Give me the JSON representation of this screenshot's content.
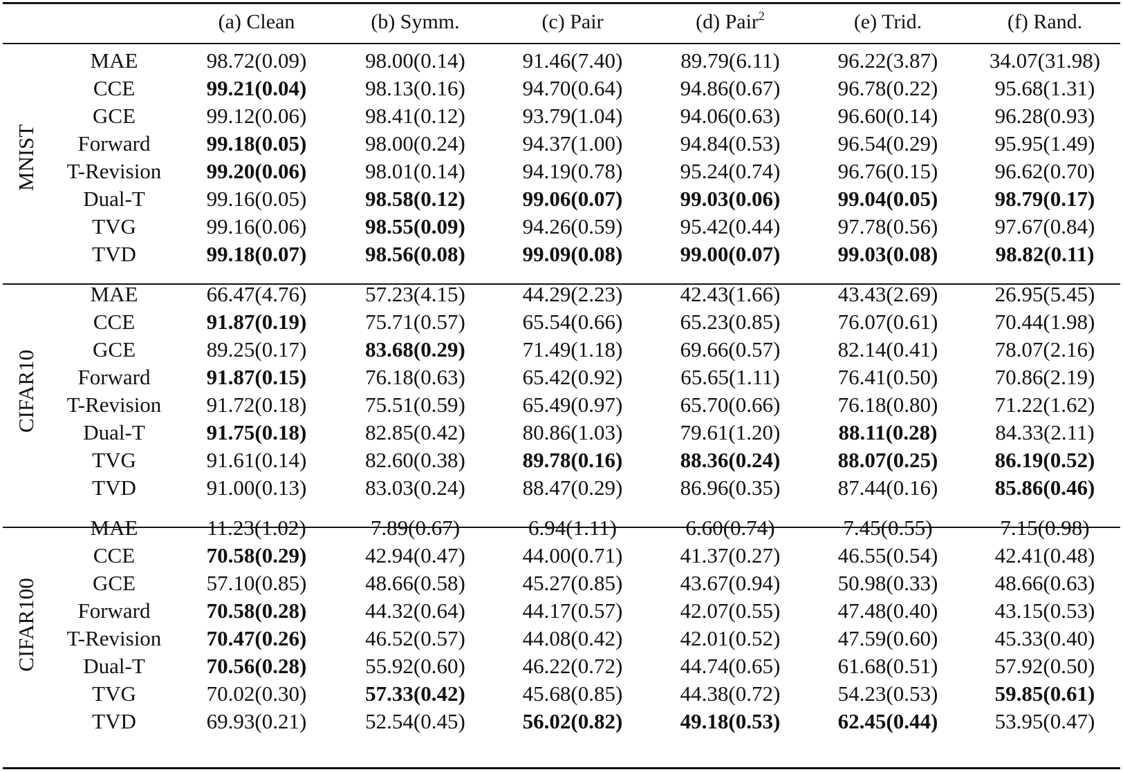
{
  "columns": [
    "(a) Clean",
    "(b) Symm.",
    "(c) Pair",
    "(d) Pair",
    "(e) Trid.",
    "(f) Rand."
  ],
  "pair2_superscript": "2",
  "sections": [
    {
      "dataset": "MNIST",
      "rows": [
        {
          "method": "MAE",
          "cells": [
            {
              "v": "98.72(0.09)",
              "b": false
            },
            {
              "v": "98.00(0.14)",
              "b": false
            },
            {
              "v": "91.46(7.40)",
              "b": false
            },
            {
              "v": "89.79(6.11)",
              "b": false
            },
            {
              "v": "96.22(3.87)",
              "b": false
            },
            {
              "v": "34.07(31.98)",
              "b": false
            }
          ]
        },
        {
          "method": "CCE",
          "cells": [
            {
              "v": "99.21(0.04)",
              "b": true
            },
            {
              "v": "98.13(0.16)",
              "b": false
            },
            {
              "v": "94.70(0.64)",
              "b": false
            },
            {
              "v": "94.86(0.67)",
              "b": false
            },
            {
              "v": "96.78(0.22)",
              "b": false
            },
            {
              "v": "95.68(1.31)",
              "b": false
            }
          ]
        },
        {
          "method": "GCE",
          "cells": [
            {
              "v": "99.12(0.06)",
              "b": false
            },
            {
              "v": "98.41(0.12)",
              "b": false
            },
            {
              "v": "93.79(1.04)",
              "b": false
            },
            {
              "v": "94.06(0.63)",
              "b": false
            },
            {
              "v": "96.60(0.14)",
              "b": false
            },
            {
              "v": "96.28(0.93)",
              "b": false
            }
          ]
        },
        {
          "method": "Forward",
          "cells": [
            {
              "v": "99.18(0.05)",
              "b": true
            },
            {
              "v": "98.00(0.24)",
              "b": false
            },
            {
              "v": "94.37(1.00)",
              "b": false
            },
            {
              "v": "94.84(0.53)",
              "b": false
            },
            {
              "v": "96.54(0.29)",
              "b": false
            },
            {
              "v": "95.95(1.49)",
              "b": false
            }
          ]
        },
        {
          "method": "T-Revision",
          "cells": [
            {
              "v": "99.20(0.06)",
              "b": true
            },
            {
              "v": "98.01(0.14)",
              "b": false
            },
            {
              "v": "94.19(0.78)",
              "b": false
            },
            {
              "v": "95.24(0.74)",
              "b": false
            },
            {
              "v": "96.76(0.15)",
              "b": false
            },
            {
              "v": "96.62(0.70)",
              "b": false
            }
          ]
        },
        {
          "method": "Dual-T",
          "cells": [
            {
              "v": "99.16(0.05)",
              "b": false
            },
            {
              "v": "98.58(0.12)",
              "b": true
            },
            {
              "v": "99.06(0.07)",
              "b": true
            },
            {
              "v": "99.03(0.06)",
              "b": true
            },
            {
              "v": "99.04(0.05)",
              "b": true
            },
            {
              "v": "98.79(0.17)",
              "b": true
            }
          ]
        },
        {
          "method": "TVG",
          "cells": [
            {
              "v": "99.16(0.06)",
              "b": false
            },
            {
              "v": "98.55(0.09)",
              "b": true
            },
            {
              "v": "94.26(0.59)",
              "b": false
            },
            {
              "v": "95.42(0.44)",
              "b": false
            },
            {
              "v": "97.78(0.56)",
              "b": false
            },
            {
              "v": "97.67(0.84)",
              "b": false
            }
          ]
        },
        {
          "method": "TVD",
          "cells": [
            {
              "v": "99.18(0.07)",
              "b": true
            },
            {
              "v": "98.56(0.08)",
              "b": true
            },
            {
              "v": "99.09(0.08)",
              "b": true
            },
            {
              "v": "99.00(0.07)",
              "b": true
            },
            {
              "v": "99.03(0.08)",
              "b": true
            },
            {
              "v": "98.82(0.11)",
              "b": true
            }
          ]
        }
      ]
    },
    {
      "dataset": "CIFAR10",
      "rows": [
        {
          "method": "MAE",
          "cells": [
            {
              "v": "66.47(4.76)",
              "b": false
            },
            {
              "v": "57.23(4.15)",
              "b": false
            },
            {
              "v": "44.29(2.23)",
              "b": false
            },
            {
              "v": "42.43(1.66)",
              "b": false
            },
            {
              "v": "43.43(2.69)",
              "b": false
            },
            {
              "v": "26.95(5.45)",
              "b": false
            }
          ]
        },
        {
          "method": "CCE",
          "cells": [
            {
              "v": "91.87(0.19)",
              "b": true
            },
            {
              "v": "75.71(0.57)",
              "b": false
            },
            {
              "v": "65.54(0.66)",
              "b": false
            },
            {
              "v": "65.23(0.85)",
              "b": false
            },
            {
              "v": "76.07(0.61)",
              "b": false
            },
            {
              "v": "70.44(1.98)",
              "b": false
            }
          ]
        },
        {
          "method": "GCE",
          "cells": [
            {
              "v": "89.25(0.17)",
              "b": false
            },
            {
              "v": "83.68(0.29)",
              "b": true
            },
            {
              "v": "71.49(1.18)",
              "b": false
            },
            {
              "v": "69.66(0.57)",
              "b": false
            },
            {
              "v": "82.14(0.41)",
              "b": false
            },
            {
              "v": "78.07(2.16)",
              "b": false
            }
          ]
        },
        {
          "method": "Forward",
          "cells": [
            {
              "v": "91.87(0.15)",
              "b": true
            },
            {
              "v": "76.18(0.63)",
              "b": false
            },
            {
              "v": "65.42(0.92)",
              "b": false
            },
            {
              "v": "65.65(1.11)",
              "b": false
            },
            {
              "v": "76.41(0.50)",
              "b": false
            },
            {
              "v": "70.86(2.19)",
              "b": false
            }
          ]
        },
        {
          "method": "T-Revision",
          "cells": [
            {
              "v": "91.72(0.18)",
              "b": false
            },
            {
              "v": "75.51(0.59)",
              "b": false
            },
            {
              "v": "65.49(0.97)",
              "b": false
            },
            {
              "v": "65.70(0.66)",
              "b": false
            },
            {
              "v": "76.18(0.80)",
              "b": false
            },
            {
              "v": "71.22(1.62)",
              "b": false
            }
          ]
        },
        {
          "method": "Dual-T",
          "cells": [
            {
              "v": "91.75(0.18)",
              "b": true
            },
            {
              "v": "82.85(0.42)",
              "b": false
            },
            {
              "v": "80.86(1.03)",
              "b": false
            },
            {
              "v": "79.61(1.20)",
              "b": false
            },
            {
              "v": "88.11(0.28)",
              "b": true
            },
            {
              "v": "84.33(2.11)",
              "b": false
            }
          ]
        },
        {
          "method": "TVG",
          "cells": [
            {
              "v": "91.61(0.14)",
              "b": false
            },
            {
              "v": "82.60(0.38)",
              "b": false
            },
            {
              "v": "89.78(0.16)",
              "b": true
            },
            {
              "v": "88.36(0.24)",
              "b": true
            },
            {
              "v": "88.07(0.25)",
              "b": true
            },
            {
              "v": "86.19(0.52)",
              "b": true
            }
          ]
        },
        {
          "method": "TVD",
          "cells": [
            {
              "v": "91.00(0.13)",
              "b": false
            },
            {
              "v": "83.03(0.24)",
              "b": false
            },
            {
              "v": "88.47(0.29)",
              "b": false
            },
            {
              "v": "86.96(0.35)",
              "b": false
            },
            {
              "v": "87.44(0.16)",
              "b": false
            },
            {
              "v": "85.86(0.46)",
              "b": true
            }
          ]
        }
      ]
    },
    {
      "dataset": "CIFAR100",
      "rows": [
        {
          "method": "MAE",
          "cells": [
            {
              "v": "11.23(1.02)",
              "b": false
            },
            {
              "v": "7.89(0.67)",
              "b": false
            },
            {
              "v": "6.94(1.11)",
              "b": false
            },
            {
              "v": "6.60(0.74)",
              "b": false
            },
            {
              "v": "7.45(0.55)",
              "b": false
            },
            {
              "v": "7.15(0.98)",
              "b": false
            }
          ]
        },
        {
          "method": "CCE",
          "cells": [
            {
              "v": "70.58(0.29)",
              "b": true
            },
            {
              "v": "42.94(0.47)",
              "b": false
            },
            {
              "v": "44.00(0.71)",
              "b": false
            },
            {
              "v": "41.37(0.27)",
              "b": false
            },
            {
              "v": "46.55(0.54)",
              "b": false
            },
            {
              "v": "42.41(0.48)",
              "b": false
            }
          ]
        },
        {
          "method": "GCE",
          "cells": [
            {
              "v": "57.10(0.85)",
              "b": false
            },
            {
              "v": "48.66(0.58)",
              "b": false
            },
            {
              "v": "45.27(0.85)",
              "b": false
            },
            {
              "v": "43.67(0.94)",
              "b": false
            },
            {
              "v": "50.98(0.33)",
              "b": false
            },
            {
              "v": "48.66(0.63)",
              "b": false
            }
          ]
        },
        {
          "method": "Forward",
          "cells": [
            {
              "v": "70.58(0.28)",
              "b": true
            },
            {
              "v": "44.32(0.64)",
              "b": false
            },
            {
              "v": "44.17(0.57)",
              "b": false
            },
            {
              "v": "42.07(0.55)",
              "b": false
            },
            {
              "v": "47.48(0.40)",
              "b": false
            },
            {
              "v": "43.15(0.53)",
              "b": false
            }
          ]
        },
        {
          "method": "T-Revision",
          "cells": [
            {
              "v": "70.47(0.26)",
              "b": true
            },
            {
              "v": "46.52(0.57)",
              "b": false
            },
            {
              "v": "44.08(0.42)",
              "b": false
            },
            {
              "v": "42.01(0.52)",
              "b": false
            },
            {
              "v": "47.59(0.60)",
              "b": false
            },
            {
              "v": "45.33(0.40)",
              "b": false
            }
          ]
        },
        {
          "method": "Dual-T",
          "cells": [
            {
              "v": "70.56(0.28)",
              "b": true
            },
            {
              "v": "55.92(0.60)",
              "b": false
            },
            {
              "v": "46.22(0.72)",
              "b": false
            },
            {
              "v": "44.74(0.65)",
              "b": false
            },
            {
              "v": "61.68(0.51)",
              "b": false
            },
            {
              "v": "57.92(0.50)",
              "b": false
            }
          ]
        },
        {
          "method": "TVG",
          "cells": [
            {
              "v": "70.02(0.30)",
              "b": false
            },
            {
              "v": "57.33(0.42)",
              "b": true
            },
            {
              "v": "45.68(0.85)",
              "b": false
            },
            {
              "v": "44.38(0.72)",
              "b": false
            },
            {
              "v": "54.23(0.53)",
              "b": false
            },
            {
              "v": "59.85(0.61)",
              "b": true
            }
          ]
        },
        {
          "method": "TVD",
          "cells": [
            {
              "v": "69.93(0.21)",
              "b": false
            },
            {
              "v": "52.54(0.45)",
              "b": false
            },
            {
              "v": "56.02(0.82)",
              "b": true
            },
            {
              "v": "49.18(0.53)",
              "b": true
            },
            {
              "v": "62.45(0.44)",
              "b": true
            },
            {
              "v": "53.95(0.47)",
              "b": false
            }
          ]
        }
      ]
    }
  ]
}
